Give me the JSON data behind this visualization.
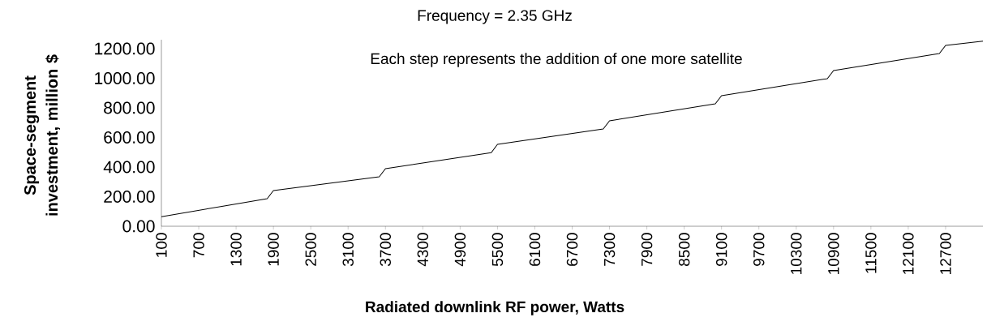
{
  "chart_data": {
    "type": "line",
    "title": "Frequency = 2.35 GHz",
    "xlabel": "Radiated downlink RF power, Watts",
    "ylabel": "Space-segment investment, million $",
    "annotations": [
      "Each step represents the addition of one more satellite"
    ],
    "x": [
      100,
      1800,
      1900,
      3600,
      3700,
      5400,
      5500,
      7200,
      7300,
      9000,
      9100,
      10800,
      10900,
      12600,
      12700,
      13300
    ],
    "series": [
      {
        "color": "#000000",
        "values": [
          65,
          186,
          241,
          334,
          389,
          497,
          553,
          657,
          712,
          827,
          882,
          997,
          1052,
          1167,
          1222,
          1250
        ]
      }
    ],
    "xlim": [
      100,
      13300
    ],
    "xticks": [
      100,
      700,
      1300,
      1900,
      2500,
      3100,
      3700,
      4300,
      4900,
      5500,
      6100,
      6700,
      7300,
      7900,
      8500,
      9100,
      9700,
      10300,
      10900,
      11500,
      12100,
      12700
    ],
    "ylim": [
      0,
      1260
    ],
    "yticks": [
      {
        "value": 0,
        "label": "0.00"
      },
      {
        "value": 200,
        "label": "200.00"
      },
      {
        "value": 400,
        "label": "400.00"
      },
      {
        "value": 600,
        "label": "600.00"
      },
      {
        "value": 800,
        "label": "800.00"
      },
      {
        "value": 1000,
        "label": "1000.00"
      },
      {
        "value": 1200,
        "label": "1200.00"
      }
    ],
    "marker": "none",
    "line_style": "solid"
  }
}
